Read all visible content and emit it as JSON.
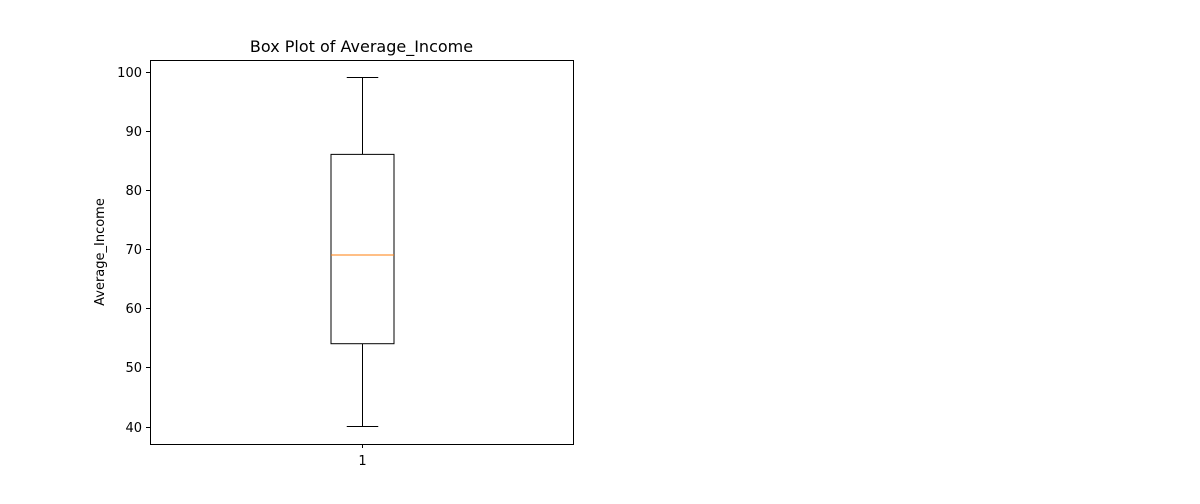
{
  "chart_data": {
    "type": "box",
    "title": "Box Plot of Average_Income",
    "xlabel": "",
    "ylabel": "Average_Income",
    "categories": [
      "1"
    ],
    "boxes": [
      {
        "category": "1",
        "whisker_low": 40,
        "q1": 54,
        "median": 69,
        "q3": 86,
        "whisker_high": 99
      }
    ],
    "yticks": [
      40,
      50,
      60,
      70,
      80,
      90,
      100
    ],
    "ylim": [
      37.05,
      101.95
    ],
    "grid": false,
    "legend": "none",
    "colors": {
      "box": "#000000",
      "median": "#ff7f0e",
      "frame": "#000000",
      "background": "#ffffff"
    }
  }
}
